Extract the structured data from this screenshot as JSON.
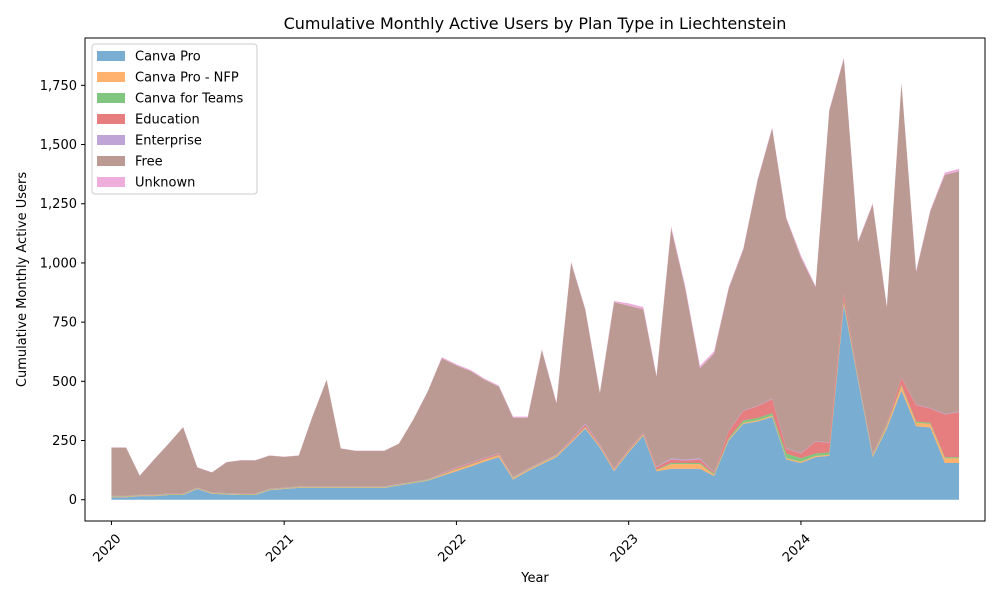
{
  "chart_data": {
    "type": "area",
    "stacked": true,
    "title": "Cumulative Monthly Active Users by Plan Type in Liechtenstein",
    "xlabel": "Year",
    "ylabel": "Cumulative Monthly Active Users",
    "x_ticks": [
      "2020",
      "2021",
      "2022",
      "2023",
      "2024"
    ],
    "y_ticks": [
      "0",
      "250",
      "500",
      "750",
      "1,000",
      "1,250",
      "1,500",
      "1,750"
    ],
    "xlim": [
      "2019-11-06",
      "2025-01-25"
    ],
    "ylim": [
      -90,
      1950
    ],
    "grid": false,
    "legend_position": "top-left",
    "x": [
      "2020-01-01",
      "2020-02-01",
      "2020-03-01",
      "2020-04-01",
      "2020-05-01",
      "2020-06-01",
      "2020-07-01",
      "2020-08-01",
      "2020-09-01",
      "2020-10-01",
      "2020-11-01",
      "2020-12-01",
      "2021-01-01",
      "2021-02-01",
      "2021-03-01",
      "2021-04-01",
      "2021-05-01",
      "2021-06-01",
      "2021-07-01",
      "2021-08-01",
      "2021-09-01",
      "2021-10-01",
      "2021-11-01",
      "2021-12-01",
      "2022-01-01",
      "2022-02-01",
      "2022-03-01",
      "2022-04-01",
      "2022-05-01",
      "2022-06-01",
      "2022-07-01",
      "2022-08-01",
      "2022-09-01",
      "2022-10-01",
      "2022-11-01",
      "2022-12-01",
      "2023-01-01",
      "2023-02-01",
      "2023-03-01",
      "2023-04-01",
      "2023-05-01",
      "2023-06-01",
      "2023-07-01",
      "2023-08-01",
      "2023-09-01",
      "2023-10-01",
      "2023-11-01",
      "2023-12-01",
      "2024-01-01",
      "2024-02-01",
      "2024-03-01",
      "2024-04-01",
      "2024-05-01",
      "2024-06-01",
      "2024-07-01",
      "2024-08-01",
      "2024-09-01",
      "2024-10-01",
      "2024-11-01",
      "2024-12-01"
    ],
    "series": [
      {
        "name": "Canva Pro",
        "color": "#1f77b4",
        "values": [
          10,
          10,
          15,
          15,
          20,
          20,
          45,
          25,
          22,
          20,
          20,
          40,
          45,
          50,
          50,
          50,
          50,
          50,
          50,
          50,
          60,
          70,
          80,
          100,
          120,
          140,
          160,
          180,
          85,
          120,
          150,
          180,
          240,
          300,
          220,
          120,
          200,
          270,
          120,
          130,
          130,
          130,
          100,
          250,
          320,
          330,
          350,
          170,
          155,
          180,
          185,
          820,
          500,
          180,
          300,
          460,
          310,
          305,
          155,
          155
        ]
      },
      {
        "name": "Canva Pro - NFP",
        "color": "#ff7f0e",
        "values": [
          2,
          2,
          2,
          2,
          2,
          2,
          2,
          2,
          2,
          2,
          2,
          2,
          2,
          2,
          2,
          2,
          2,
          2,
          2,
          2,
          2,
          2,
          2,
          5,
          8,
          8,
          8,
          8,
          5,
          5,
          5,
          5,
          5,
          5,
          5,
          5,
          5,
          5,
          5,
          20,
          20,
          20,
          5,
          5,
          5,
          5,
          5,
          5,
          5,
          5,
          5,
          10,
          5,
          5,
          10,
          20,
          15,
          15,
          20,
          20
        ]
      },
      {
        "name": "Canva for Teams",
        "color": "#2ca02c",
        "values": [
          2,
          2,
          2,
          2,
          2,
          2,
          2,
          2,
          2,
          2,
          2,
          2,
          2,
          2,
          2,
          2,
          2,
          2,
          2,
          2,
          2,
          2,
          2,
          2,
          2,
          2,
          2,
          2,
          2,
          2,
          2,
          2,
          2,
          2,
          2,
          2,
          2,
          2,
          2,
          5,
          5,
          5,
          5,
          5,
          10,
          10,
          10,
          20,
          15,
          10,
          10,
          10,
          5,
          5,
          5,
          5,
          5,
          5,
          5,
          5
        ]
      },
      {
        "name": "Education",
        "color": "#d62728",
        "values": [
          1,
          1,
          1,
          1,
          1,
          1,
          1,
          1,
          1,
          1,
          1,
          1,
          1,
          1,
          1,
          1,
          1,
          1,
          1,
          1,
          1,
          1,
          1,
          3,
          5,
          5,
          5,
          5,
          2,
          2,
          2,
          2,
          5,
          10,
          5,
          5,
          5,
          5,
          10,
          15,
          10,
          15,
          5,
          30,
          40,
          50,
          60,
          20,
          20,
          50,
          40,
          30,
          5,
          5,
          5,
          30,
          70,
          60,
          180,
          190
        ]
      },
      {
        "name": "Enterprise",
        "color": "#9467bd",
        "values": [
          1,
          1,
          1,
          1,
          1,
          1,
          1,
          1,
          1,
          1,
          1,
          1,
          1,
          1,
          1,
          1,
          1,
          1,
          1,
          1,
          1,
          1,
          1,
          2,
          2,
          2,
          2,
          2,
          2,
          2,
          2,
          2,
          3,
          5,
          2,
          2,
          2,
          2,
          2,
          5,
          5,
          5,
          2,
          2,
          2,
          2,
          2,
          2,
          2,
          2,
          2,
          2,
          2,
          2,
          2,
          2,
          2,
          2,
          2,
          2
        ]
      },
      {
        "name": "Free",
        "color": "#8c564b",
        "values": [
          204,
          204,
          80,
          150,
          210,
          280,
          85,
          84,
          130,
          140,
          140,
          140,
          130,
          130,
          290,
          450,
          160,
          150,
          150,
          150,
          170,
          260,
          370,
          485,
          430,
          385,
          330,
          280,
          250,
          215,
          470,
          215,
          745,
          480,
          215,
          700,
          605,
          520,
          380,
          970,
          720,
          380,
          500,
          600,
          680,
          950,
          1140,
          970,
          825,
          650,
          1400,
          990,
          570,
          1050,
          490,
          1240,
          560,
          830,
          1010,
          1015
        ]
      },
      {
        "name": "Unknown",
        "color": "#e377c2",
        "values": [
          1,
          1,
          1,
          1,
          1,
          1,
          1,
          1,
          1,
          1,
          1,
          1,
          1,
          1,
          1,
          1,
          1,
          1,
          1,
          1,
          1,
          1,
          1,
          5,
          5,
          5,
          5,
          5,
          5,
          5,
          5,
          5,
          5,
          5,
          5,
          5,
          10,
          10,
          5,
          10,
          10,
          10,
          10,
          5,
          5,
          5,
          5,
          5,
          10,
          5,
          5,
          5,
          5,
          5,
          5,
          5,
          5,
          5,
          10,
          10
        ]
      }
    ]
  }
}
